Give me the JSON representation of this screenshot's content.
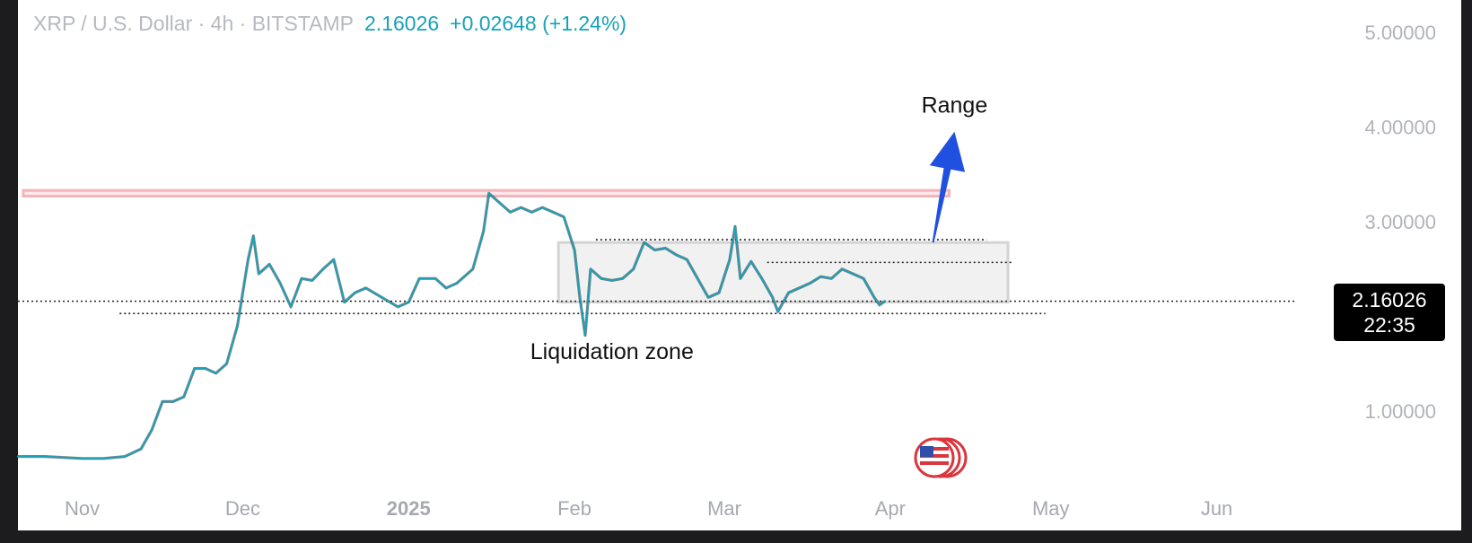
{
  "header": {
    "symbol": "XRP / U.S. Dollar · 4h · BITSTAMP",
    "price": "2.16026",
    "change": "+0.02648 (+1.24%)"
  },
  "price_badge": {
    "price": "2.16026",
    "countdown": "22:35"
  },
  "colors": {
    "background": "#ffffff",
    "accent": "#17a2b8",
    "resistance": "#f4b3b8",
    "range_box": "#d4d4d4",
    "arrow": "#2050e0",
    "badge": "#000000"
  },
  "icons": [
    "us-flag-event-icon"
  ],
  "chart_data": {
    "type": "line",
    "title": "",
    "xlabel": "",
    "ylabel": "",
    "ylim": [
      0,
      5.3
    ],
    "y_ticks": [
      "5.00000",
      "4.00000",
      "3.00000",
      "1.00000"
    ],
    "y_tick_values": [
      5,
      4,
      3,
      1
    ],
    "x_ticks": [
      {
        "label": "Nov",
        "date": "2024-11-01",
        "bold": false
      },
      {
        "label": "Dec",
        "date": "2024-12-01",
        "bold": false
      },
      {
        "label": "2025",
        "date": "2025-01-01",
        "bold": true
      },
      {
        "label": "Feb",
        "date": "2025-02-01",
        "bold": false
      },
      {
        "label": "Mar",
        "date": "2025-03-01",
        "bold": false
      },
      {
        "label": "Apr",
        "date": "2025-04-01",
        "bold": false
      },
      {
        "label": "May",
        "date": "2025-05-01",
        "bold": false
      },
      {
        "label": "Jun",
        "date": "2025-06-01",
        "bold": false
      }
    ],
    "grid": false,
    "series": [
      {
        "color": "#17a2b8",
        "points": [
          [
            "2024-10-20",
            0.52
          ],
          [
            "2024-10-25",
            0.52
          ],
          [
            "2024-11-01",
            0.5
          ],
          [
            "2024-11-05",
            0.5
          ],
          [
            "2024-11-09",
            0.52
          ],
          [
            "2024-11-12",
            0.6
          ],
          [
            "2024-11-14",
            0.8
          ],
          [
            "2024-11-16",
            1.1
          ],
          [
            "2024-11-18",
            1.1
          ],
          [
            "2024-11-20",
            1.15
          ],
          [
            "2024-11-22",
            1.45
          ],
          [
            "2024-11-24",
            1.45
          ],
          [
            "2024-11-26",
            1.4
          ],
          [
            "2024-11-28",
            1.5
          ],
          [
            "2024-11-30",
            1.9
          ],
          [
            "2024-12-02",
            2.6
          ],
          [
            "2024-12-03",
            2.85
          ],
          [
            "2024-12-04",
            2.45
          ],
          [
            "2024-12-06",
            2.55
          ],
          [
            "2024-12-08",
            2.35
          ],
          [
            "2024-12-10",
            2.1
          ],
          [
            "2024-12-12",
            2.4
          ],
          [
            "2024-12-14",
            2.38
          ],
          [
            "2024-12-16",
            2.5
          ],
          [
            "2024-12-18",
            2.6
          ],
          [
            "2024-12-20",
            2.15
          ],
          [
            "2024-12-22",
            2.25
          ],
          [
            "2024-12-24",
            2.3
          ],
          [
            "2024-12-27",
            2.2
          ],
          [
            "2024-12-30",
            2.1
          ],
          [
            "2025-01-01",
            2.15
          ],
          [
            "2025-01-03",
            2.4
          ],
          [
            "2025-01-06",
            2.4
          ],
          [
            "2025-01-08",
            2.3
          ],
          [
            "2025-01-10",
            2.35
          ],
          [
            "2025-01-13",
            2.5
          ],
          [
            "2025-01-15",
            2.9
          ],
          [
            "2025-01-16",
            3.3
          ],
          [
            "2025-01-18",
            3.2
          ],
          [
            "2025-01-20",
            3.1
          ],
          [
            "2025-01-22",
            3.15
          ],
          [
            "2025-01-24",
            3.1
          ],
          [
            "2025-01-26",
            3.15
          ],
          [
            "2025-01-28",
            3.1
          ],
          [
            "2025-01-30",
            3.05
          ],
          [
            "2025-02-01",
            2.7
          ],
          [
            "2025-02-02",
            2.2
          ],
          [
            "2025-02-03",
            1.8
          ],
          [
            "2025-02-04",
            2.5
          ],
          [
            "2025-02-06",
            2.4
          ],
          [
            "2025-02-08",
            2.38
          ],
          [
            "2025-02-10",
            2.4
          ],
          [
            "2025-02-12",
            2.5
          ],
          [
            "2025-02-14",
            2.78
          ],
          [
            "2025-02-16",
            2.7
          ],
          [
            "2025-02-18",
            2.72
          ],
          [
            "2025-02-20",
            2.65
          ],
          [
            "2025-02-22",
            2.6
          ],
          [
            "2025-02-24",
            2.4
          ],
          [
            "2025-02-26",
            2.2
          ],
          [
            "2025-02-28",
            2.25
          ],
          [
            "2025-03-02",
            2.6
          ],
          [
            "2025-03-03",
            2.95
          ],
          [
            "2025-03-04",
            2.4
          ],
          [
            "2025-03-06",
            2.58
          ],
          [
            "2025-03-08",
            2.4
          ],
          [
            "2025-03-10",
            2.2
          ],
          [
            "2025-03-11",
            2.05
          ],
          [
            "2025-03-13",
            2.25
          ],
          [
            "2025-03-15",
            2.3
          ],
          [
            "2025-03-17",
            2.35
          ],
          [
            "2025-03-19",
            2.42
          ],
          [
            "2025-03-21",
            2.4
          ],
          [
            "2025-03-23",
            2.5
          ],
          [
            "2025-03-25",
            2.45
          ],
          [
            "2025-03-27",
            2.4
          ],
          [
            "2025-03-29",
            2.2
          ],
          [
            "2025-03-30",
            2.12
          ],
          [
            "2025-03-31",
            2.16
          ]
        ]
      }
    ],
    "annotations": [
      {
        "type": "resistance_band",
        "y_low": 3.27,
        "y_high": 3.33,
        "x_start": "2024-10-21",
        "x_end": "2025-04-12",
        "color": "#f4b3b8"
      },
      {
        "type": "range_box",
        "y_low": 2.15,
        "y_high": 2.78,
        "x_start": "2025-01-29",
        "x_end": "2025-04-23",
        "color": "#d4d4d4"
      },
      {
        "type": "dotted_hline",
        "y": 2.16,
        "x_start": "2024-10-20",
        "x_end": "2025-06-16"
      },
      {
        "type": "dotted_hline",
        "y": 2.03,
        "x_start": "2024-11-08",
        "x_end": "2025-04-30"
      },
      {
        "type": "dotted_hline",
        "y": 2.81,
        "x_start": "2025-02-05",
        "x_end": "2025-04-19"
      },
      {
        "type": "dotted_hline",
        "y": 2.57,
        "x_start": "2025-03-09",
        "x_end": "2025-04-24"
      },
      {
        "type": "arrow",
        "from": [
          "2025-04-09",
          2.78
        ],
        "to": [
          "2025-04-13",
          3.95
        ],
        "color": "#2050e0"
      },
      {
        "type": "text",
        "label": "Range",
        "x": "2025-04-13",
        "y": 4.15
      },
      {
        "type": "text",
        "label": "Liquidation zone",
        "x": "2025-02-08",
        "y": 1.55
      }
    ]
  }
}
